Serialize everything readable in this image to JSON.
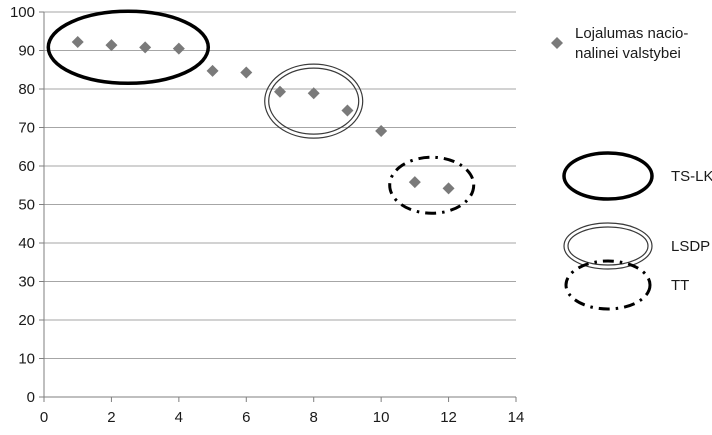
{
  "chart_data": {
    "type": "scatter",
    "title": "",
    "xlabel": "",
    "ylabel": "",
    "xlim": [
      0,
      14
    ],
    "ylim": [
      0,
      100
    ],
    "x_ticks": [
      "0",
      "2",
      "4",
      "6",
      "8",
      "10",
      "12",
      "14"
    ],
    "y_ticks": [
      "0",
      "10",
      "20",
      "30",
      "40",
      "50",
      "60",
      "70",
      "80",
      "90",
      "100"
    ],
    "grid": "horizontal",
    "legend_position": "right",
    "series": [
      {
        "name": "Lojalumas nacio- nalinei valstybei",
        "name_lines": [
          "Lojalumas nacio-",
          "nalinei valstybei"
        ],
        "marker": "diamond",
        "color": "#7a7a7a",
        "points": [
          {
            "x": 1,
            "y": 92.2
          },
          {
            "x": 2,
            "y": 91.4
          },
          {
            "x": 3,
            "y": 90.8
          },
          {
            "x": 4,
            "y": 90.5
          },
          {
            "x": 5,
            "y": 84.7
          },
          {
            "x": 6,
            "y": 84.3
          },
          {
            "x": 7,
            "y": 79.3
          },
          {
            "x": 8,
            "y": 78.9
          },
          {
            "x": 9,
            "y": 74.4
          },
          {
            "x": 10,
            "y": 69.1
          },
          {
            "x": 11,
            "y": 55.8
          },
          {
            "x": 12,
            "y": 54.2
          }
        ]
      }
    ],
    "groups": [
      {
        "label": "TS-LKD",
        "style": "bold-solid",
        "members": [
          1,
          2,
          3,
          4
        ]
      },
      {
        "label": "LSDP",
        "style": "double",
        "members": [
          7,
          8,
          9
        ]
      },
      {
        "label": "TT",
        "style": "dash-dot",
        "members": [
          11,
          12
        ]
      }
    ],
    "colors": {
      "grid": "#a6a6a6",
      "axis": "#7f7f7f",
      "marker": "#7a7a7a",
      "outline": "#000000"
    }
  }
}
